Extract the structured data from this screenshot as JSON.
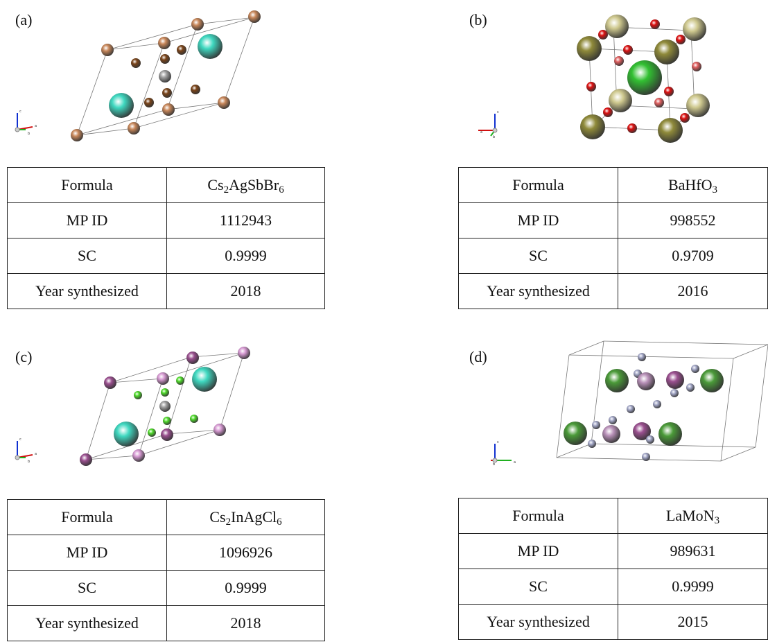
{
  "panels": [
    {
      "label": "(a)",
      "axis_labels": [
        "c",
        "a",
        "b"
      ],
      "rows": [
        [
          "Formula",
          [
            "Cs",
            {
              "sub": "2"
            },
            "AgSbBr",
            {
              "sub": "6"
            }
          ]
        ],
        [
          "MP ID",
          1112943
        ],
        [
          "SC",
          0.9999
        ],
        [
          "Year synthesized",
          2018
        ]
      ]
    },
    {
      "label": "(b)",
      "axis_labels": [
        "c",
        "a",
        "b"
      ],
      "rows": [
        [
          "Formula",
          [
            "BaHfO",
            {
              "sub": "3"
            }
          ]
        ],
        [
          "MP ID",
          998552
        ],
        [
          "SC",
          0.9709
        ],
        [
          "Year synthesized",
          2016
        ]
      ]
    },
    {
      "label": "(c)",
      "axis_labels": [
        "c",
        "a",
        "b"
      ],
      "rows": [
        [
          "Formula",
          [
            "Cs",
            {
              "sub": "2"
            },
            "InAgCl",
            {
              "sub": "6"
            }
          ]
        ],
        [
          "MP ID",
          1096926
        ],
        [
          "SC",
          0.9999
        ],
        [
          "Year synthesized",
          2018
        ]
      ]
    },
    {
      "label": "(d)",
      "axis_labels": [
        "c",
        "a",
        "b"
      ],
      "rows": [
        [
          "Formula",
          [
            "LaMoN",
            {
              "sub": "3"
            }
          ]
        ],
        [
          "MP ID",
          989631
        ],
        [
          "SC",
          0.9999
        ],
        [
          "Year synthesized",
          2015
        ]
      ]
    }
  ]
}
